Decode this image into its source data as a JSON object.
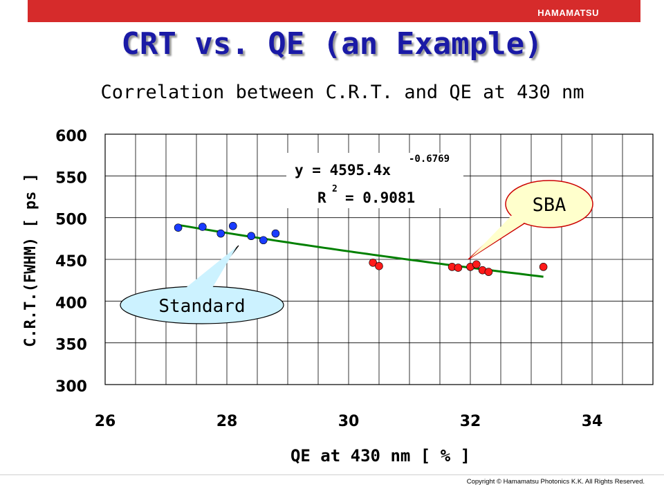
{
  "header": {
    "brand": "HAMAMATSU"
  },
  "slide_title": "CRT vs. QE (an Example)",
  "footer": {
    "copyright": "Copyright © Hamamatsu Photonics K.K.  All Rights Reserved."
  },
  "chart_data": {
    "type": "scatter",
    "title": "Correlation between C.R.T. and QE at 430 nm",
    "xlabel": "QE at 430 nm [ % ]",
    "ylabel": "C.R.T.(FWHM)  [ ps ]",
    "xlim": [
      26,
      35
    ],
    "ylim": [
      300,
      600
    ],
    "x_ticks": [
      26,
      28,
      30,
      32,
      34
    ],
    "y_ticks": [
      300,
      350,
      400,
      450,
      500,
      550,
      600
    ],
    "grid": "on",
    "series": [
      {
        "color": "#1a3cff",
        "x": [
          27.2,
          27.6,
          27.9,
          28.1,
          28.4,
          28.6,
          28.8
        ],
        "y": [
          488,
          489,
          481,
          490,
          478,
          473,
          481
        ]
      },
      {
        "color": "#ff1a1a",
        "x": [
          30.4,
          30.5,
          31.7,
          31.8,
          32.0,
          32.1,
          32.2,
          32.3,
          33.2
        ],
        "y": [
          446,
          442,
          441,
          440,
          441,
          444,
          437,
          435,
          441
        ]
      }
    ],
    "fit": {
      "color": "#008000",
      "a": 4595.4,
      "b": -0.6769,
      "x_range": [
        27.2,
        33.2
      ],
      "equation_prefix": "y = 4595.4x",
      "exponent": "-0.6769",
      "r2_label": "R",
      "r2_sup": "2",
      "r2_value": "= 0.9081"
    },
    "annotations": [
      {
        "text": "Standard",
        "points_to": "first series"
      },
      {
        "text": "SBA",
        "points_to": "second series"
      }
    ]
  }
}
